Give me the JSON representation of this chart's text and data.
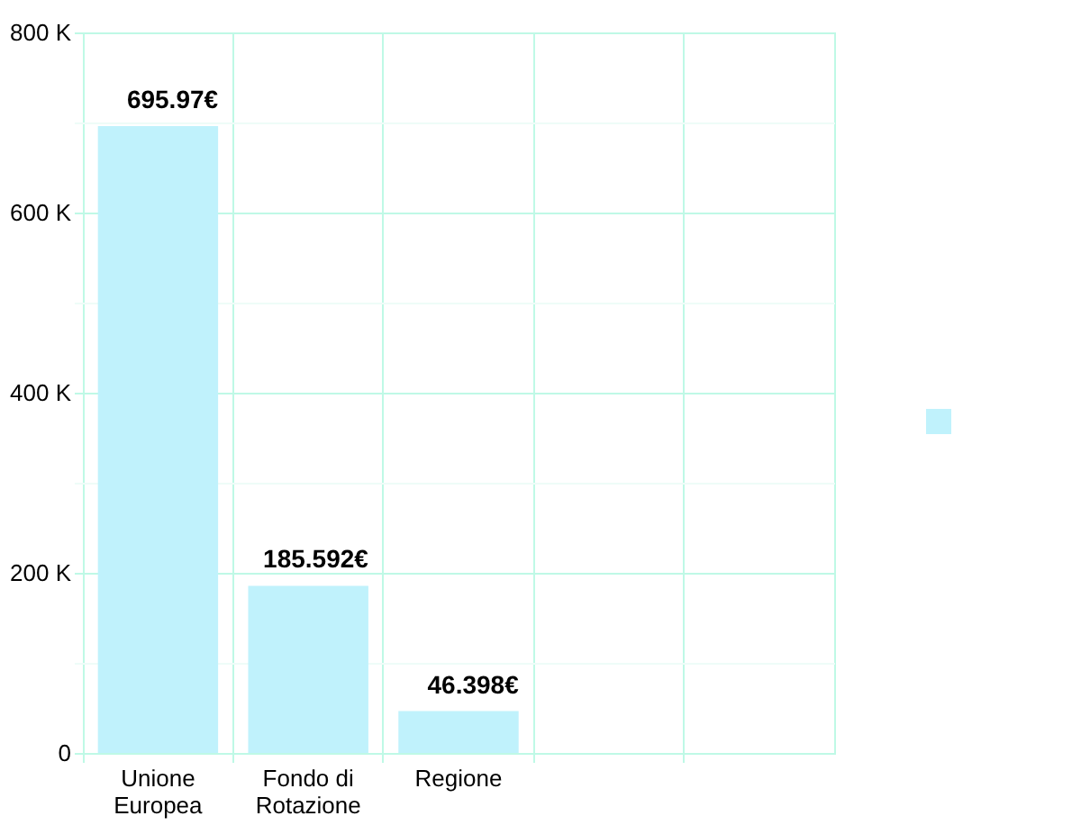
{
  "chart_data": {
    "type": "bar",
    "categories": [
      "Unione Europea",
      "Fondo di Rotazione",
      "Regione",
      null,
      null
    ],
    "series": [
      {
        "color": "#c0f2fc",
        "values": [
          695.97,
          185.592,
          46.398,
          null,
          null
        ],
        "value_labels": [
          "695.97€",
          "185.592€",
          "46.398€",
          null,
          null
        ]
      }
    ],
    "ylim": [
      0,
      800
    ],
    "yticks": [
      0,
      {
        "value": 100,
        "label": null
      },
      {
        "value": 200,
        "label": "200 K"
      },
      {
        "value": 300,
        "label": null
      },
      {
        "value": 400,
        "label": "400 K"
      },
      {
        "value": 500,
        "label": null
      },
      {
        "value": 600,
        "label": "600 K"
      },
      {
        "value": 700,
        "label": null
      },
      {
        "value": 800,
        "label": "800 K"
      }
    ],
    "grid": true
  }
}
